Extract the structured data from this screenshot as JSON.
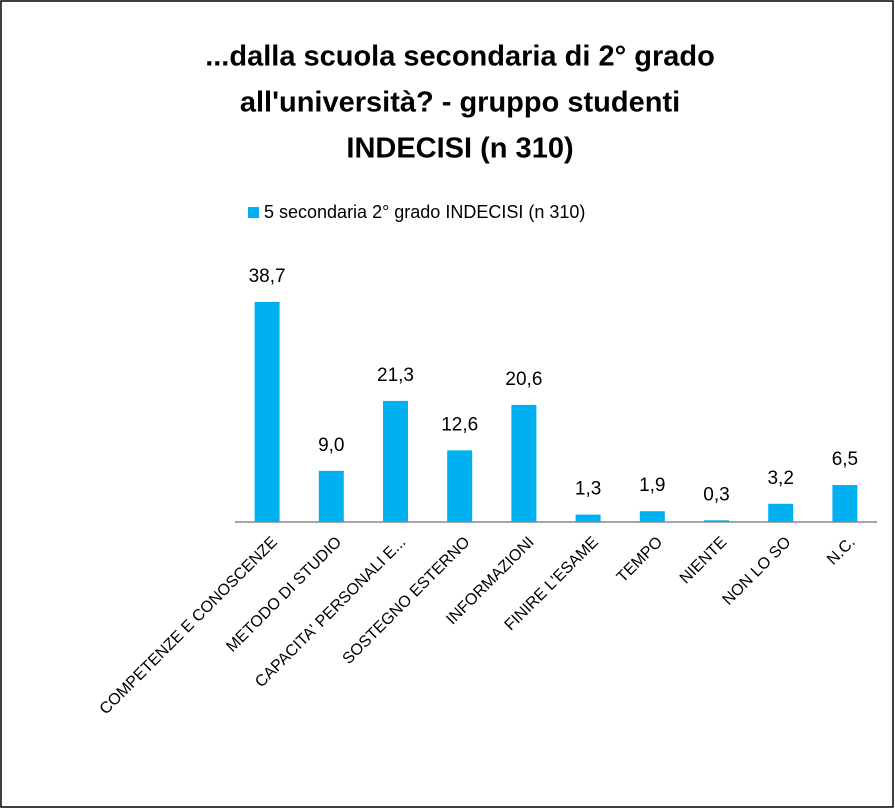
{
  "chart_data": {
    "type": "bar",
    "title": [
      "...dalla scuola secondaria di 2° grado",
      "all'università?  - gruppo studenti",
      "INDECISI (n 310)"
    ],
    "categories": [
      "COMPETENZE E CONOSCENZE",
      "METODO DI STUDIO",
      "CAPACITA' PERSONALI E...",
      "SOSTEGNO ESTERNO",
      "INFORMAZIONI",
      "FINIRE L'ESAME",
      "TEMPO",
      "NIENTE",
      "NON LO SO",
      "N.C."
    ],
    "series": [
      {
        "name": "5 secondaria 2° grado INDECISI (n 310)",
        "color": "#00b0f0",
        "values": [
          38.7,
          9.0,
          21.3,
          12.6,
          20.6,
          1.3,
          1.9,
          0.3,
          3.2,
          6.5
        ],
        "value_labels": [
          "38,7",
          "9,0",
          "21,3",
          "12,6",
          "20,6",
          "1,3",
          "1,9",
          "0,3",
          "3,2",
          "6,5"
        ]
      }
    ],
    "legend": "top"
  }
}
